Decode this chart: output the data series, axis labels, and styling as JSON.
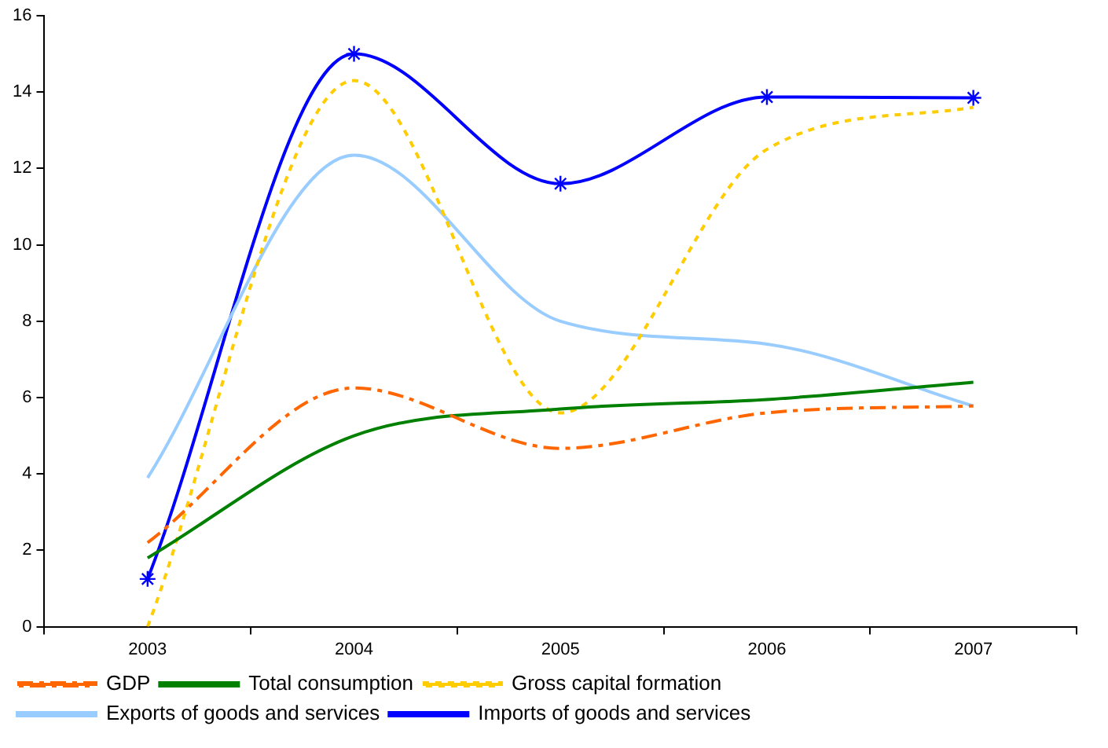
{
  "chart_data": {
    "type": "line",
    "categories": [
      "2003",
      "2004",
      "2005",
      "2006",
      "2007"
    ],
    "series": [
      {
        "name": "GDP",
        "color": "#ff6600",
        "values": [
          2.2,
          6.25,
          4.67,
          5.6,
          5.78
        ],
        "line_style": "dashed",
        "marker": "none"
      },
      {
        "name": "Total consumption",
        "color": "#008000",
        "values": [
          1.8,
          5.0,
          5.7,
          5.95,
          6.4
        ],
        "line_style": "solid",
        "marker": "none"
      },
      {
        "name": "Gross capital formation",
        "color": "#ffcc00",
        "values": [
          0,
          14.3,
          5.6,
          12.5,
          13.6
        ],
        "line_style": "dotted",
        "marker": "none"
      },
      {
        "name": "Exports of goods and services",
        "color": "#99ccff",
        "values": [
          3.9,
          12.35,
          8.0,
          7.4,
          5.78
        ],
        "line_style": "solid",
        "marker": "none"
      },
      {
        "name": "Imports of goods and services",
        "color": "#0000ff",
        "values": [
          1.25,
          15.0,
          11.6,
          13.87,
          13.85
        ],
        "line_style": "solid",
        "marker": "cross"
      }
    ],
    "ylim": [
      0,
      16
    ],
    "yticks": [
      0,
      2,
      4,
      6,
      8,
      10,
      12,
      14,
      16
    ],
    "grid": false,
    "legend": "bottom"
  }
}
